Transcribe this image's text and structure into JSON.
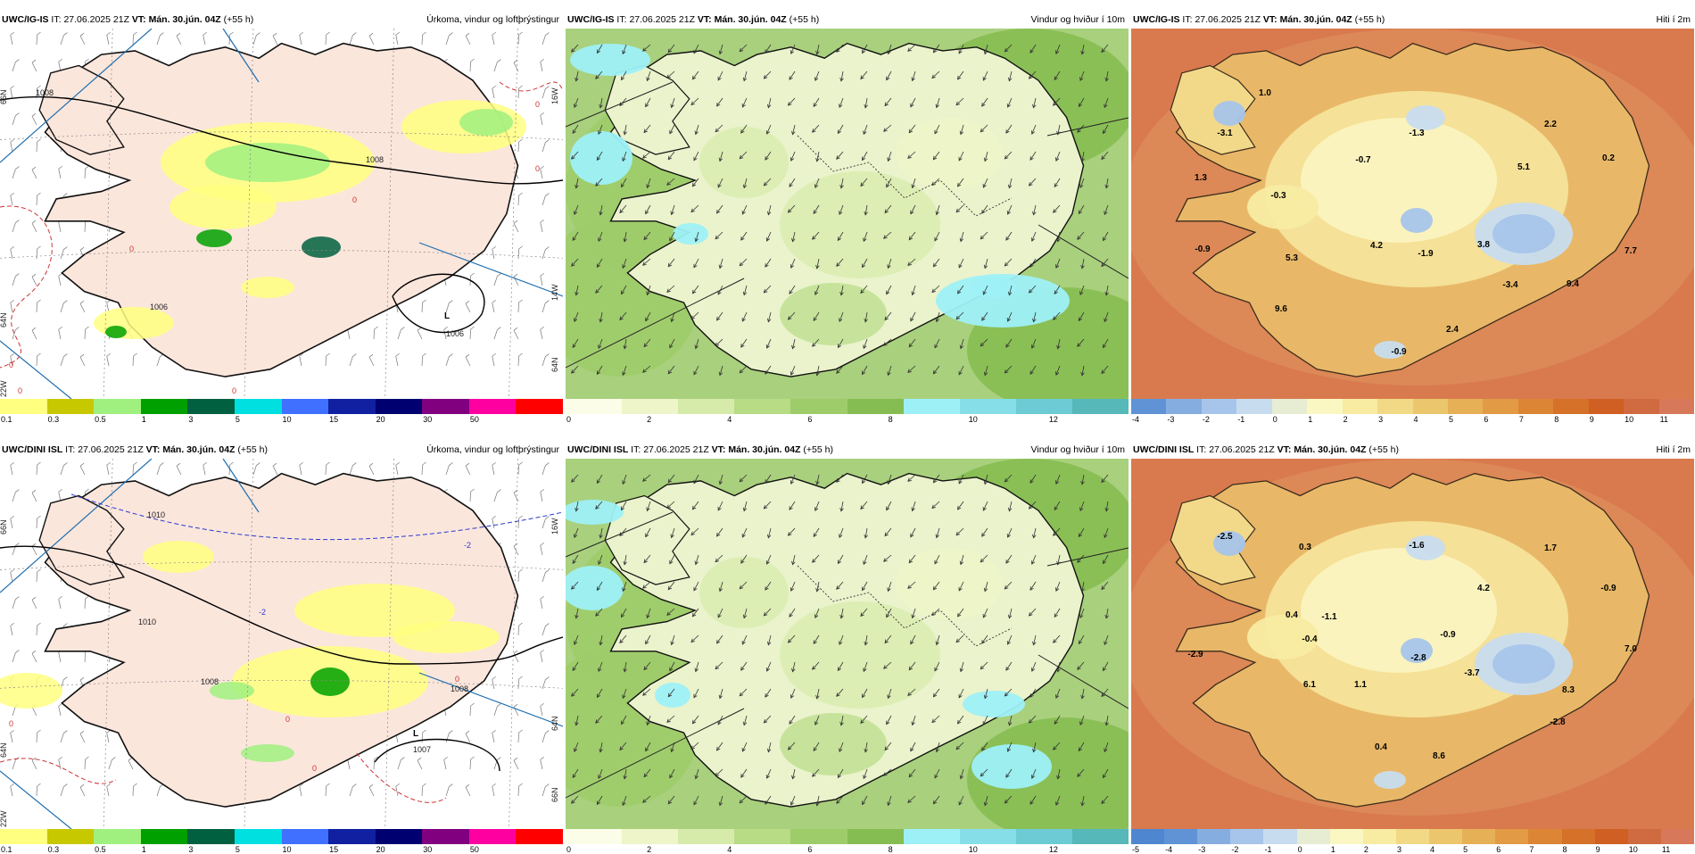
{
  "panels": [
    {
      "model": "UWC/IG-IS",
      "it_label": "IT:",
      "it": "27.06.2025 21Z",
      "vt_label": "VT:",
      "vt": "Mán. 30.jún. 04Z",
      "lead": "(+55 h)",
      "title": "Úrkoma, vindur og loftþrýstingur",
      "type": "precip",
      "pressure_labels": [
        "1008",
        "1008",
        "1006",
        "1006",
        "L"
      ],
      "contour_labels": [
        "0",
        "0",
        "0",
        "0",
        "0",
        "0",
        "0"
      ],
      "lat_labels": [
        "66N",
        "64N",
        "22W",
        "16W",
        "14W",
        "64N"
      ]
    },
    {
      "model": "UWC/IG-IS",
      "it_label": "IT:",
      "it": "27.06.2025 21Z",
      "vt_label": "VT:",
      "vt": "Mán. 30.jún. 04Z",
      "lead": "(+55 h)",
      "title": "Vindur og hviður í 10m",
      "type": "wind"
    },
    {
      "model": "UWC/IG-IS",
      "it_label": "IT:",
      "it": "27.06.2025 21Z",
      "vt_label": "VT:",
      "vt": "Mán. 30.jún. 04Z",
      "lead": "(+55 h)",
      "title": "Hiti í 2m",
      "type": "temp",
      "values": [
        "1.0",
        "2.2",
        "-3.1",
        "-1.3",
        "-0.7",
        "5.1",
        "0.2",
        "1.3",
        "-0.3",
        "3.8",
        "4.2",
        "-1.9",
        "-0.9",
        "5.3",
        "7.7",
        "-3.4",
        "9.4",
        "9.6",
        "2.4",
        "-0.9"
      ]
    },
    {
      "model": "UWC/DINI ISL",
      "it_label": "IT:",
      "it": "27.06.2025 21Z",
      "vt_label": "VT:",
      "vt": "Mán. 30.jún. 04Z",
      "lead": "(+55 h)",
      "title": "Úrkoma, vindur og loftþrýstingur",
      "type": "precip",
      "pressure_labels": [
        "1010",
        "1010",
        "1008",
        "1008",
        "1007",
        "L"
      ],
      "contour_labels": [
        "-2",
        "-2",
        "0",
        "0",
        "0",
        "0"
      ],
      "lat_labels": [
        "66N",
        "64N",
        "22W",
        "16W",
        "64N",
        "66N"
      ]
    },
    {
      "model": "UWC/DINI ISL",
      "it_label": "IT:",
      "it": "27.06.2025 21Z",
      "vt_label": "VT:",
      "vt": "Mán. 30.jún. 04Z",
      "lead": "(+55 h)",
      "title": "Vindur og hviður í 10m",
      "type": "wind"
    },
    {
      "model": "UWC/DINI ISL",
      "it_label": "IT:",
      "it": "27.06.2025 21Z",
      "vt_label": "VT:",
      "vt": "Mán. 30.jún. 04Z",
      "lead": "(+55 h)",
      "title": "Hiti í 2m",
      "type": "temp",
      "values": [
        "-2.5",
        "0.3",
        "-1.6",
        "1.7",
        "4.2",
        "-0.9",
        "0.4",
        "-1.1",
        "-0.4",
        "-0.9",
        "-2.9",
        "-2.8",
        "-3.7",
        "7.0",
        "6.1",
        "1.1",
        "8.3",
        "-2.8",
        "0.4",
        "8.6"
      ]
    }
  ],
  "colorbars": {
    "precip": {
      "colors": [
        "#ffff80",
        "#c8c800",
        "#a0f080",
        "#00a000",
        "#006040",
        "#00e0e0",
        "#4070ff",
        "#1020a0",
        "#000070",
        "#800080",
        "#ff00a0",
        "#ff0000"
      ],
      "ticks": [
        "0.1",
        "0.3",
        "0.5",
        "1",
        "3",
        "5",
        "10",
        "15",
        "20",
        "30",
        "50"
      ]
    },
    "wind": {
      "colors": [
        "#fbfde8",
        "#eef5c8",
        "#d6ebaa",
        "#b8db86",
        "#9fcc6a",
        "#86bd52",
        "#9ef0f7",
        "#86dfe8",
        "#6ccbd4",
        "#56b8b8"
      ],
      "ticks": [
        "0",
        "2",
        "4",
        "6",
        "8",
        "10",
        "12"
      ]
    },
    "temp_top": {
      "colors": [
        "#5f93d6",
        "#86addf",
        "#a7c5ea",
        "#c8dcef",
        "#e6edd2",
        "#fbf7c2",
        "#f8eba2",
        "#f2d985",
        "#ecc66c",
        "#e6b057",
        "#e29a45",
        "#dc8535",
        "#d57129",
        "#cf5f22",
        "#d06a40",
        "#d8785a"
      ],
      "ticks": [
        "-4",
        "-3",
        "-2",
        "-1",
        "0",
        "1",
        "2",
        "3",
        "4",
        "5",
        "6",
        "7",
        "8",
        "9",
        "10",
        "11"
      ]
    },
    "temp_bottom": {
      "colors": [
        "#4f86d0",
        "#5f93d6",
        "#86addf",
        "#a7c5ea",
        "#c8dcef",
        "#e6edd2",
        "#fbf7c2",
        "#f8eba2",
        "#f2d985",
        "#ecc66c",
        "#e6b057",
        "#e29a45",
        "#dc8535",
        "#d57129",
        "#cf5f22",
        "#d06a40",
        "#d8785a"
      ],
      "ticks": [
        "-5",
        "-4",
        "-3",
        "-2",
        "-1",
        "0",
        "1",
        "2",
        "3",
        "4",
        "5",
        "6",
        "7",
        "8",
        "9",
        "10",
        "11"
      ]
    }
  },
  "colors": {
    "land_precip": "#fbe6dc",
    "sea_precip": "#ffffff",
    "wind_land": "#eaf3cc",
    "wind_sea": "#a9d07d",
    "temp_sea": "#d97a4e",
    "temp_land": "#f2d987",
    "meridian": "#1f6fb0"
  }
}
